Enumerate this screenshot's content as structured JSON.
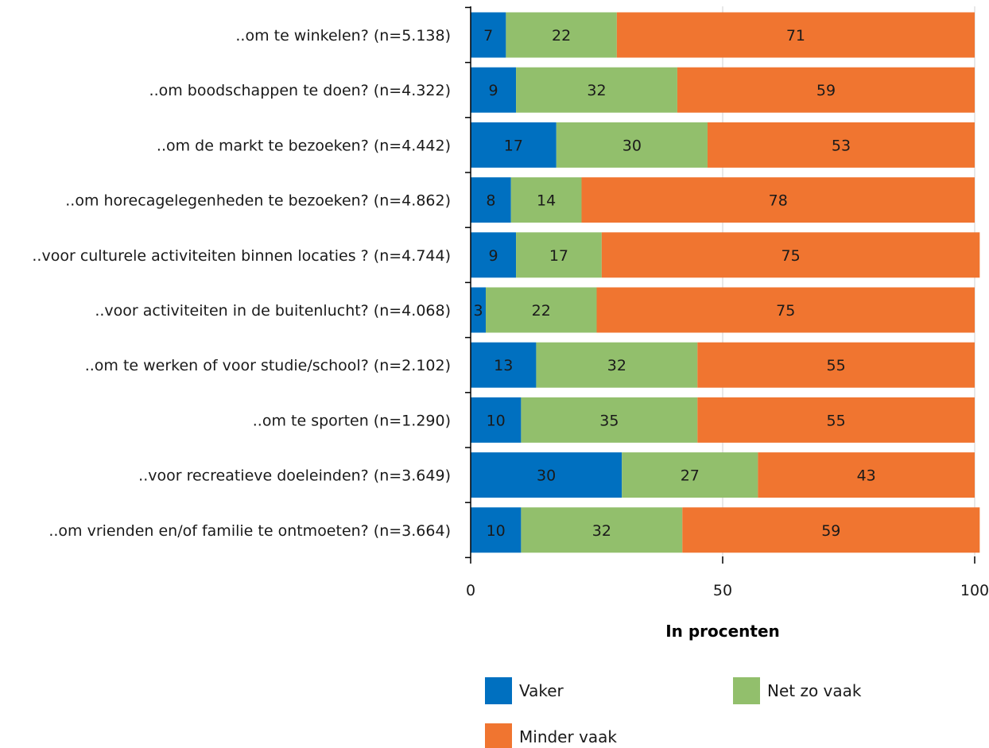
{
  "chart_data": {
    "type": "bar",
    "orientation": "horizontal",
    "stacked": true,
    "categories": [
      "..om te winkelen? (n=5.138)",
      "..om boodschappen te doen? (n=4.322)",
      "..om de markt te bezoeken? (n=4.442)",
      "..om horecagelegenheden te bezoeken? (n=4.862)",
      "..voor culturele activiteiten binnen locaties ? (n=4.744)",
      "..voor activiteiten in de buitenlucht? (n=4.068)",
      "..om te werken of voor studie/school? (n=2.102)",
      "..om te sporten (n=1.290)",
      "..voor recreatieve doeleinden? (n=3.649)",
      "..om vrienden en/of familie te ontmoeten? (n=3.664)"
    ],
    "series": [
      {
        "name": "Vaker",
        "color": "#0070c0",
        "values": [
          7,
          9,
          17,
          8,
          9,
          3,
          13,
          10,
          30,
          10
        ]
      },
      {
        "name": "Net zo vaak",
        "color": "#92bf6c",
        "values": [
          22,
          32,
          30,
          14,
          17,
          22,
          32,
          35,
          27,
          32
        ]
      },
      {
        "name": "Minder vaak",
        "color": "#f07530",
        "values": [
          71,
          59,
          53,
          78,
          75,
          75,
          55,
          55,
          43,
          59
        ]
      }
    ],
    "xlabel": "In procenten",
    "xlim": [
      0,
      100
    ],
    "xticks": [
      0,
      50,
      100
    ],
    "grid": true,
    "legend_position": "bottom"
  }
}
